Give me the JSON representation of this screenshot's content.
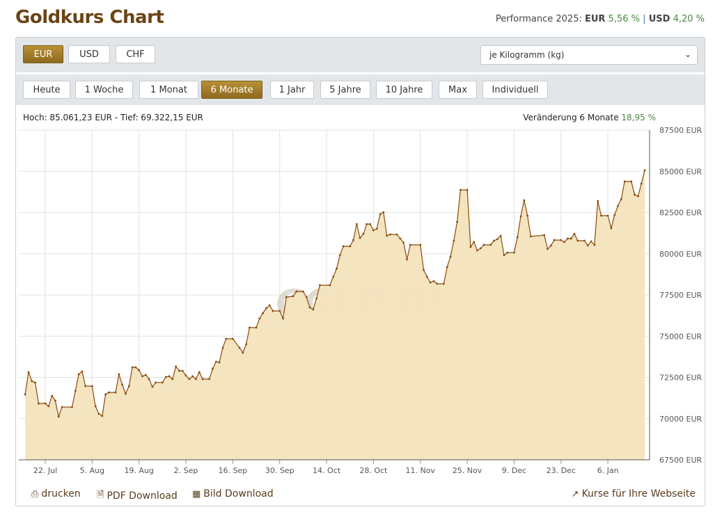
{
  "header": {
    "title": "Goldkurs Chart",
    "perf_label": "Performance 2025:",
    "perf_eur_label": "EUR",
    "perf_eur": "5,56 %",
    "perf_sep": "|",
    "perf_usd_label": "USD",
    "perf_usd": "4,20 %"
  },
  "currencies": [
    {
      "label": "EUR",
      "active": true
    },
    {
      "label": "USD",
      "active": false
    },
    {
      "label": "CHF",
      "active": false
    }
  ],
  "unit_select": {
    "value": "je Kilogramm (kg)"
  },
  "ranges": [
    {
      "label": "Heute"
    },
    {
      "label": "1 Woche"
    },
    {
      "label": "1 Monat"
    },
    {
      "label": "6 Monate",
      "active": true
    },
    {
      "label": "1 Jahr"
    },
    {
      "label": "5 Jahre"
    },
    {
      "label": "10 Jahre"
    },
    {
      "label": "Max"
    },
    {
      "label": "Individuell"
    }
  ],
  "info": {
    "high_low": "Hoch: 85.061,23 EUR - Tief: 69.322,15 EUR",
    "change_label": "Veränderung 6 Monate",
    "change_value": "18,95 %"
  },
  "watermark": "GOLD.DE",
  "footer": {
    "print": "drucken",
    "pdf": "PDF Download",
    "image": "Bild Download",
    "embed": "Kurse für Ihre Webseite"
  },
  "colors": {
    "accent": "#9a7428",
    "line": "#8a4a0c",
    "fill": "#f3e3bd",
    "positive": "#4a8a3f",
    "title": "#6b4416"
  },
  "chart_data": {
    "type": "area",
    "y_unit": "EUR",
    "ylim": [
      67500,
      87500
    ],
    "y_ticks": [
      67500,
      70000,
      72500,
      75000,
      77500,
      80000,
      82500,
      85000,
      87500
    ],
    "y_tick_labels": [
      "67500 EUR",
      "70000 EUR",
      "72500 EUR",
      "75000 EUR",
      "77500 EUR",
      "80000 EUR",
      "82500 EUR",
      "85000 EUR",
      "87500 EUR"
    ],
    "x_ticks": [
      "2024-07-22",
      "2024-08-05",
      "2024-08-19",
      "2024-09-02",
      "2024-09-16",
      "2024-09-30",
      "2024-10-14",
      "2024-10-28",
      "2024-11-11",
      "2024-11-25",
      "2024-12-09",
      "2024-12-23",
      "2025-01-06"
    ],
    "x_tick_labels": [
      "22. Jul",
      "5. Aug",
      "19. Aug",
      "2. Sep",
      "16. Sep",
      "30. Sep",
      "14. Oct",
      "28. Oct",
      "11. Nov",
      "25. Nov",
      "9. Dec",
      "23. Dec",
      "6. Jan"
    ],
    "grid": true,
    "points": [
      [
        "2024-07-16",
        71470
      ],
      [
        "2024-07-17",
        72820
      ],
      [
        "2024-07-18",
        72270
      ],
      [
        "2024-07-19",
        72190
      ],
      [
        "2024-07-20",
        70920
      ],
      [
        "2024-07-22",
        70920
      ],
      [
        "2024-07-23",
        70750
      ],
      [
        "2024-07-24",
        71380
      ],
      [
        "2024-07-25",
        71090
      ],
      [
        "2024-07-26",
        70120
      ],
      [
        "2024-07-27",
        70700
      ],
      [
        "2024-07-30",
        70700
      ],
      [
        "2024-07-31",
        71680
      ],
      [
        "2024-08-01",
        72690
      ],
      [
        "2024-08-02",
        72860
      ],
      [
        "2024-08-03",
        71970
      ],
      [
        "2024-08-05",
        71970
      ],
      [
        "2024-08-06",
        70750
      ],
      [
        "2024-08-07",
        70290
      ],
      [
        "2024-08-08",
        70160
      ],
      [
        "2024-08-09",
        71470
      ],
      [
        "2024-08-10",
        71590
      ],
      [
        "2024-08-12",
        71590
      ],
      [
        "2024-08-13",
        72690
      ],
      [
        "2024-08-14",
        72060
      ],
      [
        "2024-08-15",
        71510
      ],
      [
        "2024-08-16",
        71970
      ],
      [
        "2024-08-17",
        73110
      ],
      [
        "2024-08-18",
        73110
      ],
      [
        "2024-08-19",
        72940
      ],
      [
        "2024-08-20",
        72570
      ],
      [
        "2024-08-21",
        72650
      ],
      [
        "2024-08-22",
        72400
      ],
      [
        "2024-08-23",
        71930
      ],
      [
        "2024-08-24",
        72190
      ],
      [
        "2024-08-26",
        72190
      ],
      [
        "2024-08-27",
        72520
      ],
      [
        "2024-08-28",
        72570
      ],
      [
        "2024-08-29",
        72400
      ],
      [
        "2024-08-30",
        73160
      ],
      [
        "2024-08-31",
        72900
      ],
      [
        "2024-09-01",
        72900
      ],
      [
        "2024-09-02",
        72610
      ],
      [
        "2024-09-03",
        72400
      ],
      [
        "2024-09-04",
        72570
      ],
      [
        "2024-09-05",
        72400
      ],
      [
        "2024-09-06",
        72820
      ],
      [
        "2024-09-07",
        72400
      ],
      [
        "2024-09-09",
        72400
      ],
      [
        "2024-09-10",
        73030
      ],
      [
        "2024-09-11",
        73450
      ],
      [
        "2024-09-12",
        73410
      ],
      [
        "2024-09-13",
        74290
      ],
      [
        "2024-09-14",
        74840
      ],
      [
        "2024-09-16",
        74840
      ],
      [
        "2024-09-18",
        74300
      ],
      [
        "2024-09-19",
        74000
      ],
      [
        "2024-09-20",
        74510
      ],
      [
        "2024-09-21",
        75520
      ],
      [
        "2024-09-23",
        75520
      ],
      [
        "2024-09-24",
        76070
      ],
      [
        "2024-09-25",
        76400
      ],
      [
        "2024-09-26",
        76700
      ],
      [
        "2024-09-27",
        76870
      ],
      [
        "2024-09-28",
        76530
      ],
      [
        "2024-09-30",
        76530
      ],
      [
        "2024-10-01",
        76070
      ],
      [
        "2024-10-02",
        77370
      ],
      [
        "2024-10-04",
        77420
      ],
      [
        "2024-10-05",
        77710
      ],
      [
        "2024-10-07",
        77710
      ],
      [
        "2024-10-08",
        77370
      ],
      [
        "2024-10-09",
        76740
      ],
      [
        "2024-10-10",
        76620
      ],
      [
        "2024-10-11",
        77290
      ],
      [
        "2024-10-12",
        78090
      ],
      [
        "2024-10-15",
        78090
      ],
      [
        "2024-10-16",
        78600
      ],
      [
        "2024-10-17",
        79100
      ],
      [
        "2024-10-18",
        79910
      ],
      [
        "2024-10-19",
        80450
      ],
      [
        "2024-10-21",
        80450
      ],
      [
        "2024-10-22",
        80830
      ],
      [
        "2024-10-23",
        81800
      ],
      [
        "2024-10-24",
        80960
      ],
      [
        "2024-10-25",
        81210
      ],
      [
        "2024-10-26",
        81800
      ],
      [
        "2024-10-27",
        81800
      ],
      [
        "2024-10-28",
        81430
      ],
      [
        "2024-10-29",
        81510
      ],
      [
        "2024-10-30",
        82400
      ],
      [
        "2024-10-31",
        82520
      ],
      [
        "2024-11-01",
        81090
      ],
      [
        "2024-11-02",
        81170
      ],
      [
        "2024-11-04",
        81170
      ],
      [
        "2024-11-05",
        80920
      ],
      [
        "2024-11-06",
        80670
      ],
      [
        "2024-11-07",
        79650
      ],
      [
        "2024-11-08",
        80540
      ],
      [
        "2024-11-11",
        80540
      ],
      [
        "2024-11-12",
        79020
      ],
      [
        "2024-11-13",
        78600
      ],
      [
        "2024-11-14",
        78260
      ],
      [
        "2024-11-15",
        78340
      ],
      [
        "2024-11-16",
        78180
      ],
      [
        "2024-11-18",
        78180
      ],
      [
        "2024-11-19",
        79190
      ],
      [
        "2024-11-20",
        79820
      ],
      [
        "2024-11-21",
        80790
      ],
      [
        "2024-11-22",
        81930
      ],
      [
        "2024-11-23",
        83870
      ],
      [
        "2024-11-25",
        83870
      ],
      [
        "2024-11-26",
        80410
      ],
      [
        "2024-11-27",
        80710
      ],
      [
        "2024-11-28",
        80200
      ],
      [
        "2024-11-29",
        80330
      ],
      [
        "2024-11-30",
        80540
      ],
      [
        "2024-12-02",
        80540
      ],
      [
        "2024-12-03",
        80790
      ],
      [
        "2024-12-04",
        80880
      ],
      [
        "2024-12-05",
        81090
      ],
      [
        "2024-12-06",
        79910
      ],
      [
        "2024-12-07",
        80070
      ],
      [
        "2024-12-09",
        80070
      ],
      [
        "2024-12-10",
        81000
      ],
      [
        "2024-12-11",
        82270
      ],
      [
        "2024-12-12",
        83240
      ],
      [
        "2024-12-13",
        82310
      ],
      [
        "2024-12-14",
        81050
      ],
      [
        "2024-12-18",
        81130
      ],
      [
        "2024-12-19",
        80290
      ],
      [
        "2024-12-20",
        80500
      ],
      [
        "2024-12-21",
        80830
      ],
      [
        "2024-12-23",
        80830
      ],
      [
        "2024-12-24",
        80710
      ],
      [
        "2024-12-25",
        80920
      ],
      [
        "2024-12-26",
        80920
      ],
      [
        "2024-12-27",
        81210
      ],
      [
        "2024-12-28",
        80790
      ],
      [
        "2024-12-30",
        80790
      ],
      [
        "2024-12-31",
        80500
      ],
      [
        "2025-01-01",
        80750
      ],
      [
        "2025-01-02",
        80540
      ],
      [
        "2025-01-03",
        83200
      ],
      [
        "2025-01-04",
        82310
      ],
      [
        "2025-01-06",
        82310
      ],
      [
        "2025-01-07",
        81550
      ],
      [
        "2025-01-08",
        82350
      ],
      [
        "2025-01-09",
        82900
      ],
      [
        "2025-01-10",
        83320
      ],
      [
        "2025-01-11",
        84380
      ],
      [
        "2025-01-13",
        84380
      ],
      [
        "2025-01-14",
        83580
      ],
      [
        "2025-01-15",
        83490
      ],
      [
        "2025-01-16",
        84250
      ],
      [
        "2025-01-17",
        85060
      ]
    ]
  }
}
